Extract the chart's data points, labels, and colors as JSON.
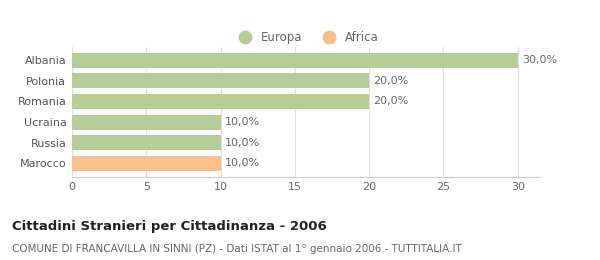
{
  "categories": [
    "Albania",
    "Polonia",
    "Romania",
    "Ucraina",
    "Russia",
    "Marocco"
  ],
  "values": [
    30.0,
    20.0,
    20.0,
    10.0,
    10.0,
    10.0
  ],
  "bar_colors": [
    "#b5cc96",
    "#b5cc96",
    "#b5cc96",
    "#b5cc96",
    "#b5cc96",
    "#f5c08a"
  ],
  "label_texts": [
    "30,0%",
    "20,0%",
    "20,0%",
    "10,0%",
    "10,0%",
    "10,0%"
  ],
  "legend_labels": [
    "Europa",
    "Africa"
  ],
  "legend_colors": [
    "#b5cc96",
    "#f5c08a"
  ],
  "xlim": [
    0,
    31.5
  ],
  "xticks": [
    0,
    5,
    10,
    15,
    20,
    25,
    30
  ],
  "title_bold": "Cittadini Stranieri per Cittadinanza - 2006",
  "subtitle": "COMUNE DI FRANCAVILLA IN SINNI (PZ) - Dati ISTAT al 1° gennaio 2006 - TUTTITALIA.IT",
  "background_color": "#ffffff",
  "bar_height": 0.72,
  "title_fontsize": 9.5,
  "subtitle_fontsize": 7.5,
  "tick_fontsize": 8,
  "label_fontsize": 8,
  "legend_fontsize": 8.5
}
